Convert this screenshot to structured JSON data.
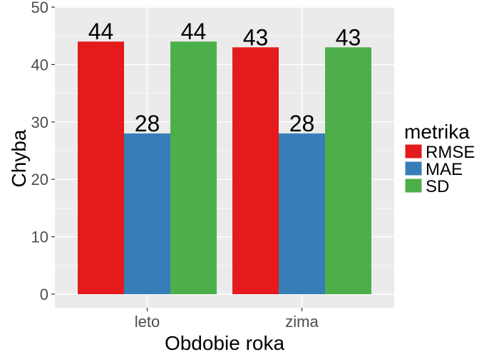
{
  "chart_data": {
    "type": "bar",
    "categories": [
      "leto",
      "zima"
    ],
    "series": [
      {
        "name": "RMSE",
        "values": [
          44,
          43
        ],
        "color": "#E41A1C"
      },
      {
        "name": "MAE",
        "values": [
          28,
          28
        ],
        "color": "#377EB8"
      },
      {
        "name": "SD",
        "values": [
          44,
          43
        ],
        "color": "#4DAF4A"
      }
    ],
    "data_labels": [
      [
        "44",
        "43"
      ],
      [
        "28",
        "28"
      ],
      [
        "44",
        "43"
      ]
    ],
    "xlabel": "Obdobie roka",
    "ylabel": "Chyba",
    "ylim": [
      0,
      50
    ],
    "yticks": [
      0,
      10,
      20,
      30,
      40,
      50
    ],
    "ytick_labels": [
      "0",
      "10",
      "20",
      "30",
      "40",
      "50"
    ],
    "grid": true,
    "legend": {
      "title": "metrika",
      "placement": "right"
    },
    "panel_color": "#EBEBEB",
    "grid_color": "#FFFFFF"
  }
}
